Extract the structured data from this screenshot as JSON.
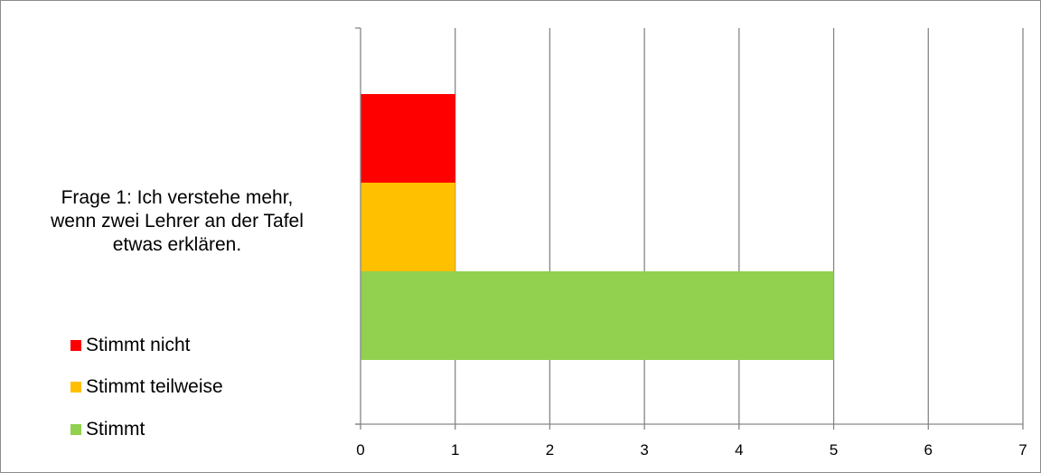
{
  "chart_data": {
    "type": "bar",
    "orientation": "horizontal",
    "stacked": false,
    "category_lines": [
      "Frage 1: Ich verstehe mehr,",
      "wenn zwei Lehrer an der Tafel",
      "etwas erklären."
    ],
    "series": [
      {
        "name": "Stimmt nicht",
        "value": 1,
        "color": "#ff0000"
      },
      {
        "name": "Stimmt teilweise",
        "value": 1,
        "color": "#ffc000"
      },
      {
        "name": "Stimmt",
        "value": 5,
        "color": "#92d050"
      }
    ],
    "x_ticks": [
      0,
      1,
      2,
      3,
      4,
      5,
      6,
      7
    ],
    "xlim": [
      0,
      7
    ],
    "grid": "vertical major gridlines",
    "legend_position": "bottom-left"
  }
}
